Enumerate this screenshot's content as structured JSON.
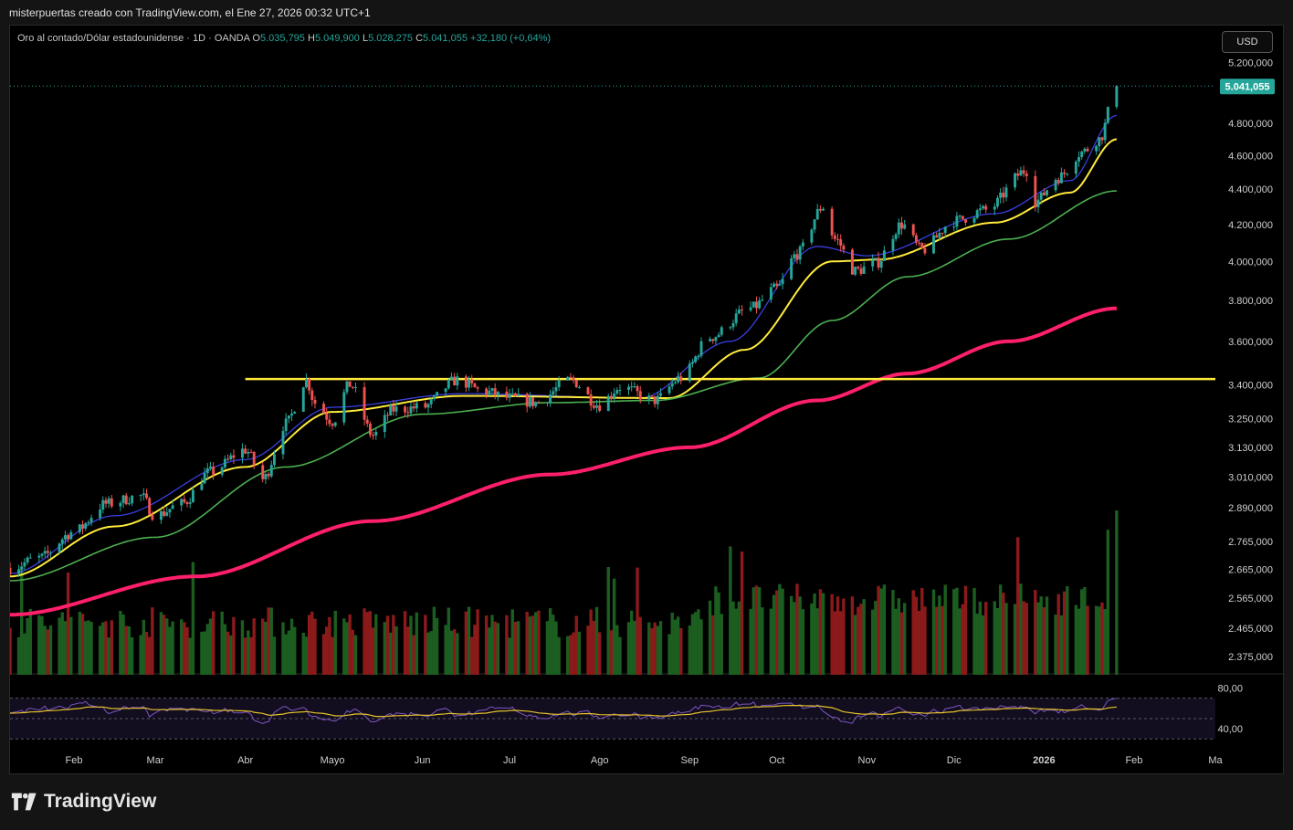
{
  "header": {
    "caption": "misterpuertas creado con TradingView.com, el Ene 27, 2026 00:32 UTC+1"
  },
  "legend": {
    "symbol": "Oro al contado/Dólar estadounidense · 1D · OANDA",
    "o_label": "O",
    "o": "5.035,795",
    "h_label": "H",
    "h": "5.049,900",
    "l_label": "L",
    "l": "5.028,275",
    "c_label": "C",
    "c": "5.041,055",
    "change": "+32,180 (+0,64%)"
  },
  "currency_button": "USD",
  "colors": {
    "up": "#26a69a",
    "down": "#ef5350",
    "vol_up": "#1b5e20",
    "vol_down": "#8b1a1a",
    "ma_fast": "#3a3fe0",
    "ma_mid": "#ffeb3b",
    "ma_slow": "#4caf50",
    "ma_long": "#ff1f6b",
    "resistance": "#ffeb3b",
    "rsi": "#7e57c2",
    "rsi_ma": "#e6c229"
  },
  "footer": {
    "brand": "TradingView"
  },
  "chart_data": {
    "type": "candlestick",
    "title": "Oro al contado/Dólar estadounidense · 1D · OANDA",
    "last_price": "5.041,055",
    "y_scale": "log",
    "ylim": [
      2330,
      5330
    ],
    "y_ticks": [
      "5.200,000",
      "4.800,000",
      "4.600,000",
      "4.400,000",
      "4.200,000",
      "4.000,000",
      "3.800,000",
      "3.600,000",
      "3.400,000",
      "3.250,000",
      "3.130,000",
      "3.010,000",
      "2.890,000",
      "2.765,000",
      "2.665,000",
      "2.565,000",
      "2.465,000",
      "2.375,000"
    ],
    "y_tick_values": [
      5200,
      4800,
      4600,
      4400,
      4200,
      4000,
      3800,
      3600,
      3400,
      3250,
      3130,
      3010,
      2890,
      2765,
      2665,
      2565,
      2465,
      2375
    ],
    "x_ticks": [
      {
        "label": "Feb",
        "x": "2025-02-01"
      },
      {
        "label": "Mar",
        "x": "2025-03-01"
      },
      {
        "label": "Abr",
        "x": "2025-04-01"
      },
      {
        "label": "Mayo",
        "x": "2025-05-01"
      },
      {
        "label": "Jun",
        "x": "2025-06-01"
      },
      {
        "label": "Jul",
        "x": "2025-07-01"
      },
      {
        "label": "Ago",
        "x": "2025-08-01"
      },
      {
        "label": "Sep",
        "x": "2025-09-01"
      },
      {
        "label": "Oct",
        "x": "2025-10-01"
      },
      {
        "label": "Nov",
        "x": "2025-11-01"
      },
      {
        "label": "Dic",
        "x": "2025-12-01"
      },
      {
        "label": "2026",
        "x": "2026-01-01"
      },
      {
        "label": "Feb",
        "x": "2026-02-01"
      },
      {
        "label": "Ma",
        "x": "2026-03-01"
      }
    ],
    "x_range": [
      "2025-01-10",
      "2026-03-01"
    ],
    "close_anchors": [
      [
        "2025-01-10",
        2670
      ],
      [
        "2025-01-20",
        2705
      ],
      [
        "2025-02-01",
        2800
      ],
      [
        "2025-02-12",
        2905
      ],
      [
        "2025-02-24",
        2935
      ],
      [
        "2025-03-01",
        2860
      ],
      [
        "2025-03-10",
        2905
      ],
      [
        "2025-03-20",
        3030
      ],
      [
        "2025-04-01",
        3120
      ],
      [
        "2025-04-07",
        3000
      ],
      [
        "2025-04-15",
        3230
      ],
      [
        "2025-04-22",
        3420
      ],
      [
        "2025-04-25",
        3320
      ],
      [
        "2025-05-01",
        3240
      ],
      [
        "2025-05-07",
        3400
      ],
      [
        "2025-05-15",
        3180
      ],
      [
        "2025-05-22",
        3290
      ],
      [
        "2025-06-01",
        3300
      ],
      [
        "2025-06-13",
        3420
      ],
      [
        "2025-06-22",
        3370
      ],
      [
        "2025-07-01",
        3340
      ],
      [
        "2025-07-10",
        3320
      ],
      [
        "2025-07-22",
        3420
      ],
      [
        "2025-08-01",
        3310
      ],
      [
        "2025-08-08",
        3390
      ],
      [
        "2025-08-20",
        3330
      ],
      [
        "2025-08-29",
        3430
      ],
      [
        "2025-09-08",
        3620
      ],
      [
        "2025-09-22",
        3760
      ],
      [
        "2025-10-01",
        3860
      ],
      [
        "2025-10-08",
        4040
      ],
      [
        "2025-10-17",
        4300
      ],
      [
        "2025-10-21",
        4120
      ],
      [
        "2025-10-28",
        3950
      ],
      [
        "2025-11-04",
        3990
      ],
      [
        "2025-11-13",
        4200
      ],
      [
        "2025-11-20",
        4060
      ],
      [
        "2025-12-01",
        4220
      ],
      [
        "2025-12-12",
        4280
      ],
      [
        "2025-12-26",
        4510
      ],
      [
        "2025-12-29",
        4330
      ],
      [
        "2026-01-06",
        4470
      ],
      [
        "2026-01-14",
        4620
      ],
      [
        "2026-01-20",
        4700
      ],
      [
        "2026-01-26",
        5041
      ]
    ],
    "moving_averages": [
      {
        "period": "fast",
        "points": [
          [
            "2025-01-10",
            2650
          ],
          [
            "2025-02-15",
            2860
          ],
          [
            "2025-04-01",
            3080
          ],
          [
            "2025-05-01",
            3300
          ],
          [
            "2025-06-15",
            3360
          ],
          [
            "2025-08-15",
            3340
          ],
          [
            "2025-09-15",
            3600
          ],
          [
            "2025-10-15",
            4080
          ],
          [
            "2025-11-01",
            4030
          ],
          [
            "2025-12-15",
            4260
          ],
          [
            "2026-01-10",
            4450
          ],
          [
            "2026-01-26",
            4850
          ]
        ]
      },
      {
        "period": "mid",
        "points": [
          [
            "2025-01-10",
            2640
          ],
          [
            "2025-02-15",
            2820
          ],
          [
            "2025-04-01",
            3050
          ],
          [
            "2025-05-01",
            3280
          ],
          [
            "2025-06-15",
            3350
          ],
          [
            "2025-08-25",
            3340
          ],
          [
            "2025-09-20",
            3560
          ],
          [
            "2025-10-20",
            4000
          ],
          [
            "2025-11-05",
            4010
          ],
          [
            "2025-12-15",
            4210
          ],
          [
            "2026-01-10",
            4380
          ],
          [
            "2026-01-26",
            4700
          ]
        ]
      },
      {
        "period": "slow",
        "points": [
          [
            "2025-01-10",
            2625
          ],
          [
            "2025-03-01",
            2780
          ],
          [
            "2025-04-15",
            3050
          ],
          [
            "2025-06-01",
            3270
          ],
          [
            "2025-07-15",
            3320
          ],
          [
            "2025-08-20",
            3330
          ],
          [
            "2025-09-25",
            3430
          ],
          [
            "2025-10-20",
            3700
          ],
          [
            "2025-11-15",
            3920
          ],
          [
            "2025-12-20",
            4120
          ],
          [
            "2026-01-26",
            4390
          ]
        ]
      },
      {
        "period": "long",
        "points": [
          [
            "2025-01-10",
            2510
          ],
          [
            "2025-03-15",
            2640
          ],
          [
            "2025-05-15",
            2840
          ],
          [
            "2025-07-15",
            3020
          ],
          [
            "2025-09-01",
            3130
          ],
          [
            "2025-10-15",
            3330
          ],
          [
            "2025-11-15",
            3450
          ],
          [
            "2025-12-20",
            3600
          ],
          [
            "2026-01-26",
            3760
          ]
        ]
      }
    ],
    "resistance_level": 3425,
    "resistance_range": [
      "2025-04-01",
      "2026-03-01"
    ],
    "rsi": {
      "ticks": [
        "80,00",
        "40,00"
      ],
      "tick_values": [
        80,
        40
      ],
      "ylim": [
        24,
        92
      ],
      "bands": [
        70,
        50,
        30
      ]
    }
  }
}
